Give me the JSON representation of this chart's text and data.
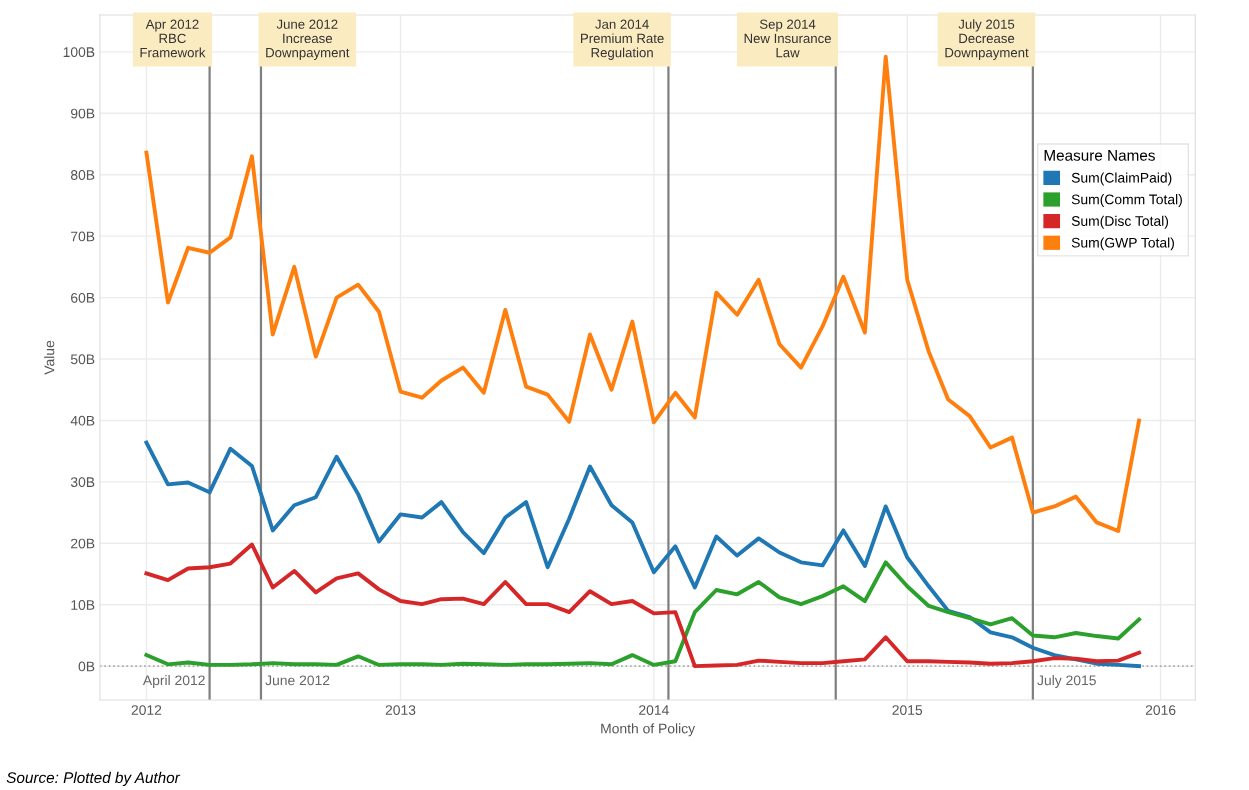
{
  "chart_data": {
    "type": "line",
    "xlabel": "Month of Policy",
    "ylabel": "Value",
    "legend_title": "Measure Names",
    "x": [
      "2012-01",
      "2012-02",
      "2012-03",
      "2012-04",
      "2012-05",
      "2012-06",
      "2012-07",
      "2012-08",
      "2012-09",
      "2012-10",
      "2012-11",
      "2012-12",
      "2013-01",
      "2013-02",
      "2013-03",
      "2013-04",
      "2013-05",
      "2013-06",
      "2013-07",
      "2013-08",
      "2013-09",
      "2013-10",
      "2013-11",
      "2013-12",
      "2014-01",
      "2014-02",
      "2014-03",
      "2014-04",
      "2014-05",
      "2014-06",
      "2014-07",
      "2014-08",
      "2014-09",
      "2014-10",
      "2014-11",
      "2014-12",
      "2015-01",
      "2015-02",
      "2015-03",
      "2015-04",
      "2015-05",
      "2015-06",
      "2015-07",
      "2015-08",
      "2015-09",
      "2015-10",
      "2015-11",
      "2015-12"
    ],
    "series": [
      {
        "name": "Sum(ClaimPaid)",
        "color": "#1f77b4",
        "values": [
          36.4,
          29.6,
          29.9,
          28.3,
          35.4,
          32.6,
          22.1,
          26.2,
          27.5,
          34.1,
          28,
          20.3,
          24.7,
          24.2,
          26.7,
          21.8,
          18.4,
          24.2,
          26.7,
          16.1,
          24,
          32.5,
          26.2,
          23.4,
          15.3,
          19.5,
          12.8,
          21.1,
          18,
          20.8,
          18.5,
          16.9,
          16.4,
          22.1,
          16.3,
          26,
          17.7,
          13,
          9,
          8,
          5.5,
          4.7,
          3,
          1.8,
          1.1,
          0.4,
          0.2,
          0
        ]
      },
      {
        "name": "Sum(Comm Total)",
        "color": "#2ca02c",
        "values": [
          1.8,
          0.3,
          0.6,
          0.2,
          0.2,
          0.3,
          0.5,
          0.3,
          0.3,
          0.2,
          1.6,
          0.2,
          0.3,
          0.3,
          0.2,
          0.4,
          0.3,
          0.2,
          0.3,
          0.3,
          0.4,
          0.5,
          0.3,
          1.8,
          0.2,
          0.8,
          8.8,
          12.4,
          11.7,
          13.7,
          11.2,
          10.1,
          11.4,
          13,
          10.6,
          16.9,
          13,
          9.8,
          8.8,
          7.8,
          6.8,
          7.8,
          5,
          4.7,
          5.4,
          4.9,
          4.5,
          7.6
        ]
      },
      {
        "name": "Sum(Disc Total)",
        "color": "#d62728",
        "values": [
          15.1,
          14,
          15.9,
          16.1,
          16.7,
          19.8,
          12.8,
          15.5,
          12,
          14.3,
          15.1,
          12.5,
          10.6,
          10.1,
          10.9,
          11,
          10.1,
          13.7,
          10.1,
          10.1,
          8.8,
          12.2,
          10.1,
          10.6,
          8.6,
          8.8,
          0,
          0.1,
          0.2,
          0.9,
          0.7,
          0.5,
          0.5,
          0.8,
          1.1,
          4.7,
          0.8,
          0.8,
          0.7,
          0.6,
          0.4,
          0.5,
          0.8,
          1.3,
          1.2,
          0.8,
          0.9,
          2.2
        ]
      },
      {
        "name": "Sum(GWP Total)",
        "color": "#ff7f0e",
        "values": [
          83.6,
          59.2,
          68.1,
          67.3,
          69.8,
          83,
          54,
          65,
          50.4,
          60,
          62.1,
          57.7,
          44.7,
          43.7,
          46.5,
          48.6,
          44.5,
          58,
          45.5,
          44.2,
          39.8,
          54,
          45,
          56.1,
          39.7,
          44.5,
          40.5,
          60.8,
          57.2,
          62.9,
          52.4,
          48.6,
          55.3,
          63.4,
          54.3,
          99.2,
          62.9,
          51.2,
          43.4,
          40.7,
          35.6,
          37.2,
          25,
          26,
          27.6,
          23.4,
          22,
          40
        ]
      }
    ],
    "xlim": [
      "2011-10-26",
      "2016-02-20"
    ],
    "xticks": [
      {
        "value": "2012",
        "label": "2012"
      },
      {
        "value": "2013",
        "label": "2013"
      },
      {
        "value": "2014",
        "label": "2014"
      },
      {
        "value": "2015",
        "label": "2015"
      },
      {
        "value": "2016",
        "label": "2016"
      }
    ],
    "ylim": [
      -5.5,
      106
    ],
    "yticks": [
      {
        "value": 0,
        "label": "0B"
      },
      {
        "value": 10,
        "label": "10B"
      },
      {
        "value": 20,
        "label": "20B"
      },
      {
        "value": 30,
        "label": "30B"
      },
      {
        "value": 40,
        "label": "40B"
      },
      {
        "value": 50,
        "label": "50B"
      },
      {
        "value": 60,
        "label": "60B"
      },
      {
        "value": 70,
        "label": "70B"
      },
      {
        "value": 80,
        "label": "80B"
      },
      {
        "value": 90,
        "label": "90B"
      },
      {
        "value": 100,
        "label": "100B"
      }
    ],
    "ref_lines": [
      {
        "axis": "x",
        "value": "2012-04-01",
        "label": "Apr 2012\nRBC\nFramework",
        "color": "#7f7f7f"
      },
      {
        "axis": "x",
        "value": "2012-06-14",
        "label": "June 2012\nIncrease\nDownpayment",
        "color": "#7f7f7f"
      },
      {
        "axis": "x",
        "value": "2014-01-22",
        "label": "Jan 2014\nPremium Rate\nRegulation",
        "color": "#7f7f7f"
      },
      {
        "axis": "x",
        "value": "2014-09-20",
        "label": "Sep 2014\nNew Insurance\nLaw",
        "color": "#7f7f7f"
      },
      {
        "axis": "x",
        "value": "2015-07-01",
        "label": "July 2015\nDecrease\nDownpayment",
        "color": "#7f7f7f"
      },
      {
        "axis": "y",
        "value": 0,
        "color": "#aaaaaa",
        "line_style": "dotted"
      }
    ],
    "annotations": [
      {
        "text": "April 2012",
        "x": "2012-04-01",
        "y": -2.5
      },
      {
        "text": "June 2012",
        "x": "2012-06-14",
        "y": -2.5
      },
      {
        "text": "July 2015",
        "x": "2015-07-01",
        "y": -2.5
      },
      "Source: Plotted by Author"
    ],
    "grid": true,
    "legend": "right",
    "line_style": "solid",
    "marker": "none"
  }
}
